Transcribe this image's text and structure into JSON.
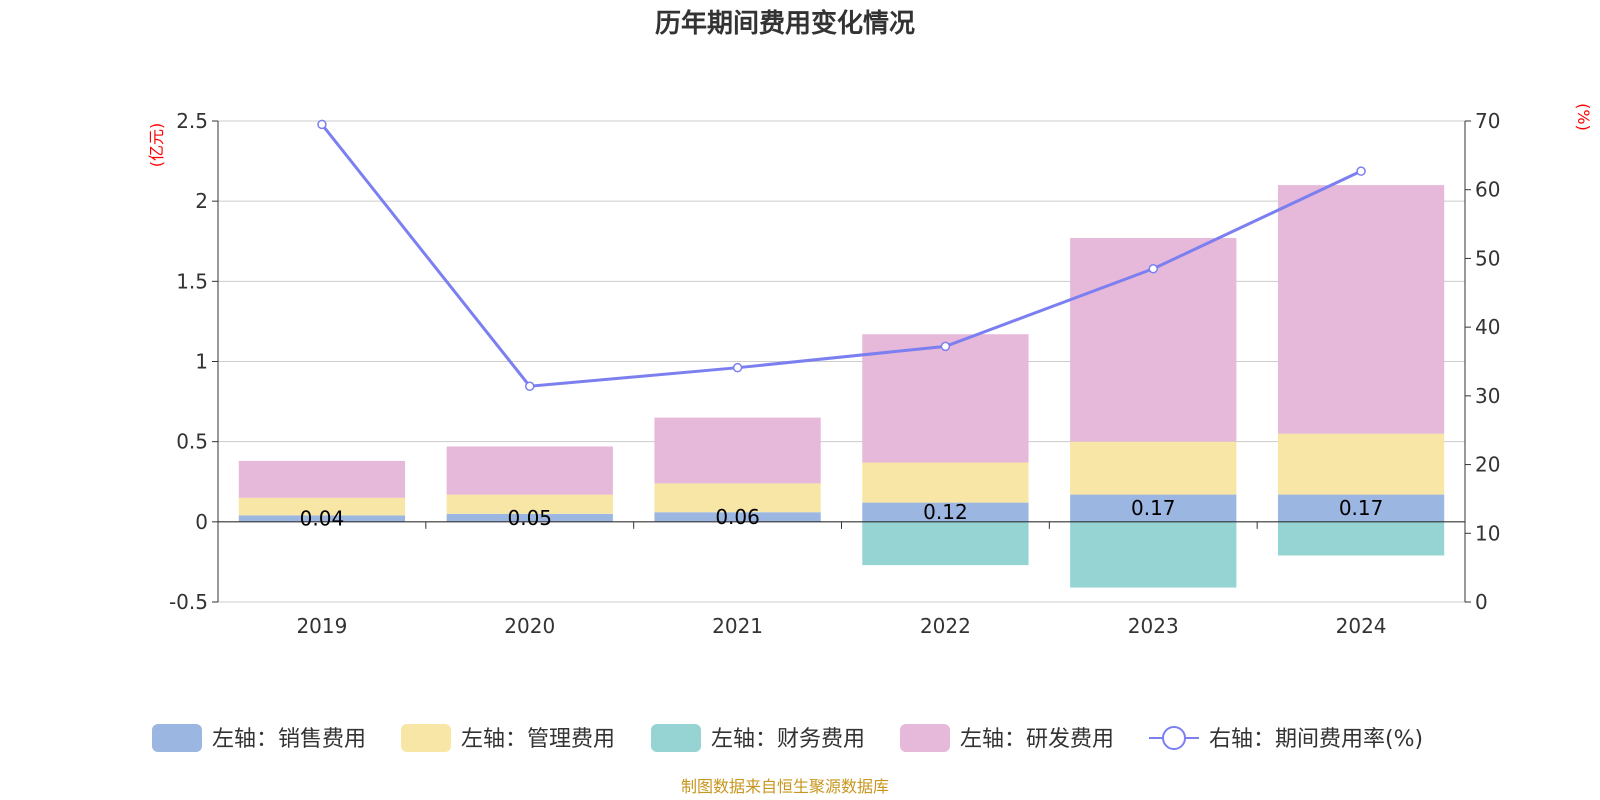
{
  "chart_data": {
    "type": "bar",
    "stacked": true,
    "title": "历年期间费用变化情况",
    "categories": [
      "2019",
      "2020",
      "2021",
      "2022",
      "2023",
      "2024"
    ],
    "y_left": {
      "unit_label": "(亿元)",
      "ylim": [
        -0.5,
        2.5
      ],
      "ticks": [
        -0.5,
        0,
        0.5,
        1,
        1.5,
        2,
        2.5
      ],
      "tick_labels": [
        "-0.5",
        "0",
        "0.5",
        "1",
        "1.5",
        "2",
        "2.5"
      ]
    },
    "y_right": {
      "unit_label": "(%)",
      "ylim": [
        0,
        70
      ],
      "ticks": [
        0,
        10,
        20,
        30,
        40,
        50,
        60,
        70
      ],
      "tick_labels": [
        "0",
        "10",
        "20",
        "30",
        "40",
        "50",
        "60",
        "70"
      ]
    },
    "series": [
      {
        "name": "左轴：销售费用",
        "axis": "left",
        "color": "#9bb6e0",
        "values": [
          0.04,
          0.05,
          0.06,
          0.12,
          0.17,
          0.17
        ],
        "data_labels": [
          "0.04",
          "0.05",
          "0.06",
          "0.12",
          "0.17",
          "0.17"
        ]
      },
      {
        "name": "左轴：管理费用",
        "axis": "left",
        "color": "#f7e6a6",
        "values": [
          0.11,
          0.12,
          0.18,
          0.25,
          0.33,
          0.38
        ]
      },
      {
        "name": "左轴：财务费用",
        "axis": "left",
        "color": "#96d4d4",
        "values": [
          0.0,
          0.0,
          0.0,
          -0.27,
          -0.41,
          -0.21
        ]
      },
      {
        "name": "左轴：研发费用",
        "axis": "left",
        "color": "#e6b8da",
        "values": [
          0.23,
          0.3,
          0.41,
          0.8,
          1.27,
          1.55
        ]
      },
      {
        "name": "右轴：期间费用率(%)",
        "axis": "right",
        "type": "line",
        "color": "#7b7ff0",
        "values": [
          69.5,
          31.4,
          34.1,
          37.2,
          48.5,
          62.7
        ]
      }
    ]
  },
  "source": "制图数据来自恒生聚源数据库"
}
